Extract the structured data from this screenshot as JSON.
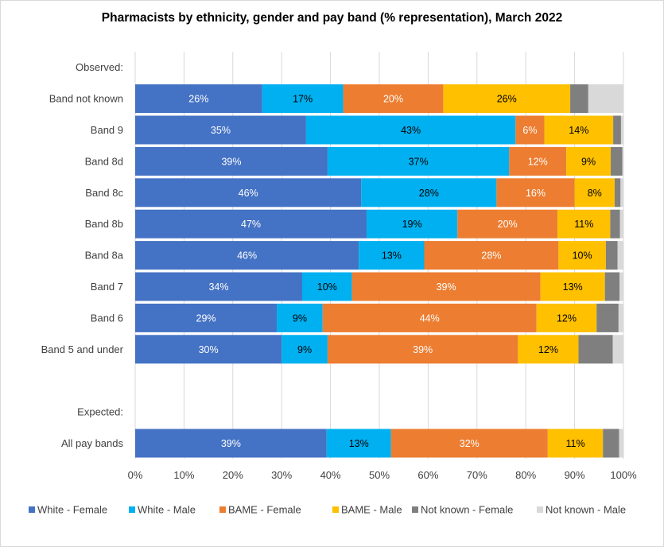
{
  "chart_data": {
    "type": "bar",
    "orientation": "horizontal-stacked-100",
    "title": "Pharmacists by ethnicity, gender and pay band (% representation), March 2022",
    "xlabel": "",
    "ylabel": "",
    "xlim": [
      0,
      100
    ],
    "x_ticks": [
      "0%",
      "10%",
      "20%",
      "30%",
      "40%",
      "50%",
      "60%",
      "70%",
      "80%",
      "90%",
      "100%"
    ],
    "grid": true,
    "legend_position": "bottom",
    "section_headers": [
      "Observed:",
      "Expected:"
    ],
    "categories": [
      "Band not known",
      "Band 9",
      "Band 8d",
      "Band 8c",
      "Band 8b",
      "Band 8a",
      "Band 7",
      "Band 6",
      "Band 5 and under",
      "All pay bands"
    ],
    "series": [
      {
        "name": "White - Female",
        "color": "#4472C4",
        "label_color": "#ffffff",
        "values": [
          26,
          35,
          39.4,
          46.3,
          47.4,
          45.8,
          34.2,
          29,
          30,
          39.2
        ]
      },
      {
        "name": "White - Male",
        "color": "#00B0F0",
        "label_color": "#000000",
        "values": [
          16.6,
          42.9,
          37.2,
          27.7,
          18.6,
          13.4,
          10.2,
          9.4,
          9.4,
          13.2
        ]
      },
      {
        "name": "BAME - Female",
        "color": "#ED7D31",
        "label_color": "#ffffff",
        "values": [
          20.5,
          5.9,
          11.7,
          16,
          20.5,
          27.5,
          38.6,
          43.8,
          39,
          32.1
        ]
      },
      {
        "name": "BAME - Male",
        "color": "#FFC000",
        "label_color": "#000000",
        "values": [
          26,
          14.1,
          9.1,
          8.2,
          10.8,
          9.7,
          13.2,
          12.3,
          12.4,
          11.3
        ]
      },
      {
        "name": "Not known - Female",
        "color": "#7F7F7F",
        "label_color": "#ffffff",
        "values": [
          3.7,
          1.6,
          2.4,
          1.2,
          2,
          2.4,
          3,
          4.5,
          7,
          3.3
        ]
      },
      {
        "name": "Not known - Male",
        "color": "#D9D9D9",
        "label_color": "#000000",
        "values": [
          7.2,
          0.5,
          0.2,
          0.6,
          0.7,
          1.2,
          0.8,
          1,
          2.2,
          0.9
        ]
      }
    ],
    "data_labels": [
      [
        "26%",
        "17%",
        "20%",
        "26%",
        "",
        ""
      ],
      [
        "35%",
        "43%",
        "6%",
        "14%",
        "",
        ""
      ],
      [
        "39%",
        "37%",
        "12%",
        "9%",
        "",
        ""
      ],
      [
        "46%",
        "28%",
        "16%",
        "8%",
        "",
        ""
      ],
      [
        "47%",
        "19%",
        "20%",
        "11%",
        "",
        ""
      ],
      [
        "46%",
        "13%",
        "28%",
        "10%",
        "",
        ""
      ],
      [
        "34%",
        "10%",
        "39%",
        "13%",
        "",
        ""
      ],
      [
        "29%",
        "9%",
        "44%",
        "12%",
        "",
        ""
      ],
      [
        "30%",
        "9%",
        "39%",
        "12%",
        "",
        ""
      ],
      [
        "39%",
        "13%",
        "32%",
        "11%",
        "",
        ""
      ]
    ]
  }
}
